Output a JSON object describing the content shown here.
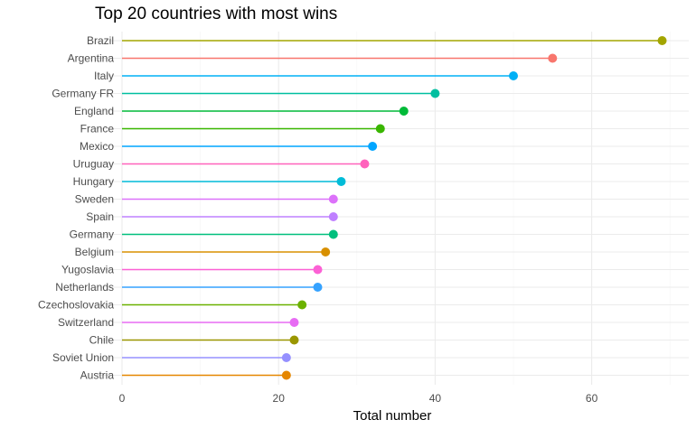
{
  "chart_data": {
    "type": "lollipop",
    "title": "Top 20 countries with most wins",
    "xlabel": "Total number",
    "ylabel": "",
    "xlim": [
      0,
      72
    ],
    "x_ticks": [
      0,
      20,
      40,
      60
    ],
    "grid": true,
    "legend": "none",
    "categories": [
      "Brazil",
      "Argentina",
      "Italy",
      "Germany FR",
      "England",
      "France",
      "Mexico",
      "Uruguay",
      "Hungary",
      "Sweden",
      "Spain",
      "Germany",
      "Belgium",
      "Yugoslavia",
      "Netherlands",
      "Czechoslovakia",
      "Switzerland",
      "Chile",
      "Soviet Union",
      "Austria"
    ],
    "values": [
      69,
      55,
      50,
      40,
      36,
      33,
      32,
      31,
      28,
      27,
      27,
      27,
      26,
      25,
      25,
      23,
      22,
      22,
      21,
      21
    ],
    "colors": [
      "#A3A500",
      "#F8766D",
      "#00B0F6",
      "#00BFA0",
      "#00BA38",
      "#39B600",
      "#00A5FF",
      "#FF62BC",
      "#00BCD8",
      "#DC71FA",
      "#BF80FF",
      "#00BF7D",
      "#D89000",
      "#FC61D5",
      "#35A2FF",
      "#6BB100",
      "#E76BF3",
      "#9A9600",
      "#9590FF",
      "#E58700"
    ]
  }
}
